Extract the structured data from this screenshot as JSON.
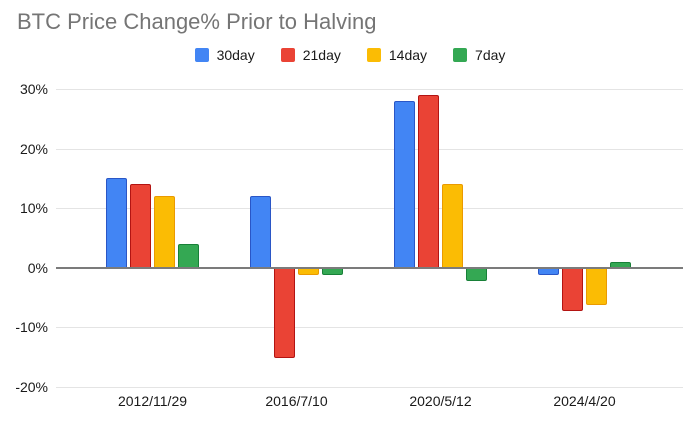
{
  "title": "BTC Price Change% Prior to Halving",
  "chart_data": {
    "type": "bar",
    "title": "BTC Price Change% Prior to Halving",
    "categories": [
      "2012/11/29",
      "2016/7/10",
      "2020/5/12",
      "2024/4/20"
    ],
    "series": [
      {
        "name": "30day",
        "color": "#4285f4",
        "border_color": "#2a56c6",
        "values": [
          15,
          12,
          28,
          -1
        ]
      },
      {
        "name": "21day",
        "color": "#ea4335",
        "border_color": "#b31412",
        "values": [
          14,
          -15,
          29,
          -7
        ]
      },
      {
        "name": "14day",
        "color": "#fbbc04",
        "border_color": "#ea9a00",
        "values": [
          12,
          -1,
          14,
          -6
        ]
      },
      {
        "name": "7day",
        "color": "#34a853",
        "border_color": "#188038",
        "values": [
          4,
          -1,
          -2,
          1
        ]
      }
    ],
    "xlabel": "",
    "ylabel": "",
    "ylim": [
      -20,
      30
    ],
    "yticks": [
      30,
      20,
      10,
      0,
      -10,
      -20
    ],
    "ytick_labels": [
      "30%",
      "20%",
      "10%",
      "0%",
      "-10%",
      "-20%"
    ],
    "grid": true,
    "legend_position": "top",
    "zero_line_color": "#7b7b7b",
    "gridline_color": "#e4e4e4",
    "title_color": "#757575"
  }
}
